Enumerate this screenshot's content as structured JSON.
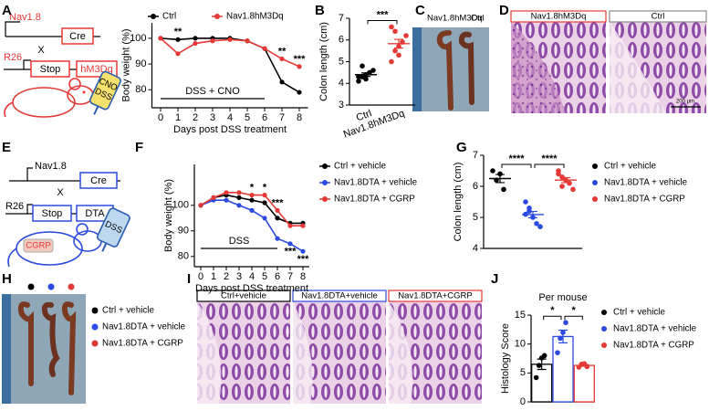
{
  "panels": [
    "A",
    "B",
    "C",
    "D",
    "E",
    "F",
    "G",
    "H",
    "I",
    "J"
  ],
  "schematic_a": {
    "gene": "Nav1.8",
    "driver": "Cre",
    "cross": "X",
    "locus": "R26",
    "stop": "Stop",
    "effector": "hM3Dq",
    "bottle": [
      "CNO",
      "DSS"
    ]
  },
  "schematic_e": {
    "gene": "Nav1.8",
    "driver": "Cre",
    "cross": "X",
    "locus": "R26",
    "stop": "Stop",
    "effector": "DTA",
    "injection": "CGRP",
    "bottle": "DSS"
  },
  "photo_c": {
    "labels": [
      "Nav1.8hM3Dq",
      "Ctrl"
    ]
  },
  "histology_d": {
    "panels": [
      {
        "label": "Nav1.8hM3Dq",
        "color": "#e53935"
      },
      {
        "label": "Ctrl",
        "color": "#888888"
      }
    ],
    "scale_bar": "200 μm"
  },
  "photo_h": {
    "legend": [
      {
        "name": "Ctrl + vehicle",
        "color": "#000000"
      },
      {
        "name": "Nav1.8DTA + vehicle",
        "color": "#2b4ae0"
      },
      {
        "name": "Nav1.8DTA + CGRP",
        "color": "#e53935"
      }
    ]
  },
  "histology_i": {
    "panels": [
      {
        "label": "Ctrl+vehicle",
        "color": "#000000"
      },
      {
        "label": "Nav1.8DTA+vehicle",
        "color": "#2b4ae0"
      },
      {
        "label": "Nav1.8DTA+CGRP",
        "color": "#e53935"
      }
    ]
  },
  "chart_data": [
    {
      "type": "line",
      "ylabel": "Body weight (%)",
      "xlabel": "Days post DSS treatment",
      "x": [
        0,
        1,
        2,
        3,
        4,
        5,
        6,
        7,
        8
      ],
      "xlim": [
        -0.5,
        8.5
      ],
      "xticks": [
        0,
        1,
        2,
        3,
        4,
        5,
        6,
        7,
        8
      ],
      "ylim": [
        73,
        106
      ],
      "yticks": [
        80,
        90,
        100
      ],
      "legend": "top",
      "series": [
        {
          "name": "Ctrl",
          "color": "#000000",
          "values": [
            100,
            99.5,
            100,
            100,
            100,
            99,
            96,
            83,
            79
          ]
        },
        {
          "name": "Nav1.8hM3Dq",
          "color": "#e53935",
          "values": [
            100,
            94,
            98,
            99,
            99.5,
            99,
            96,
            92,
            89
          ]
        }
      ],
      "annotations": [
        {
          "text": "**",
          "x": 1,
          "side": "above"
        },
        {
          "text": "**",
          "x": 7,
          "side": "above"
        },
        {
          "text": "***",
          "x": 8,
          "side": "above"
        }
      ],
      "period": {
        "label": "DSS + CNO",
        "x": [
          0,
          6
        ]
      }
    },
    {
      "type": "dot",
      "ylabel": "Colon length (cm)",
      "categories": [
        "Ctrl",
        "Nav1.8hM3Dq"
      ],
      "ylim": [
        3,
        7
      ],
      "yticks": [
        3,
        4,
        5,
        6,
        7
      ],
      "groups": [
        {
          "color": "#000000",
          "values": [
            4.1,
            4.3,
            4.4,
            4.5,
            4.6,
            4.3,
            4.8,
            4.2
          ],
          "mean": 4.4,
          "sem": 0.08
        },
        {
          "color": "#e53935",
          "values": [
            5.0,
            5.5,
            5.7,
            5.9,
            6.2,
            6.6,
            6.4,
            5.3
          ],
          "mean": 5.83,
          "sem": 0.2
        }
      ],
      "significance": [
        {
          "label": "***",
          "between": [
            0,
            1
          ]
        }
      ]
    },
    {
      "type": "line",
      "ylabel": "Body weight (%)",
      "xlabel": "Days post DSS treatment",
      "x": [
        0,
        1,
        2,
        3,
        4,
        5,
        6,
        7,
        8
      ],
      "xlim": [
        -0.5,
        8.5
      ],
      "xticks": [
        0,
        1,
        2,
        3,
        4,
        5,
        6,
        7,
        8
      ],
      "ylim": [
        76,
        116
      ],
      "yticks": [
        80,
        90,
        100
      ],
      "legend": "right",
      "series": [
        {
          "name": "Ctrl + vehicle",
          "color": "#000000",
          "values": [
            100,
            103,
            104,
            103,
            102,
            101,
            95,
            93,
            93
          ]
        },
        {
          "name": "Nav1.8DTA + vehicle",
          "color": "#2b4ae0",
          "values": [
            100,
            102,
            102,
            100,
            98,
            95,
            87,
            85,
            82
          ]
        },
        {
          "name": "Nav1.8DTA + CGRP",
          "color": "#e53935",
          "values": [
            100,
            103,
            105,
            105,
            104,
            104,
            98,
            92,
            92
          ]
        }
      ],
      "annotations": [
        {
          "text": "*",
          "x": 4,
          "side": "above"
        },
        {
          "text": "*",
          "x": 5,
          "side": "above"
        },
        {
          "text": "***",
          "x": 6,
          "side": "above"
        },
        {
          "text": "***",
          "x": 7,
          "side": "below"
        },
        {
          "text": "***",
          "x": 8,
          "side": "below"
        }
      ],
      "period": {
        "label": "DSS",
        "x": [
          0,
          6
        ]
      }
    },
    {
      "type": "dot",
      "ylabel": "Colon length (cm)",
      "ylim": [
        4,
        7
      ],
      "yticks": [
        4,
        5,
        6,
        7
      ],
      "legend": "right",
      "groups": [
        {
          "name": "Ctrl + vehicle",
          "color": "#000000",
          "values": [
            6.5,
            6.2,
            6.4,
            5.9
          ],
          "mean": 6.25,
          "sem": 0.13
        },
        {
          "name": "Nav1.8DTA + vehicle",
          "color": "#2b4ae0",
          "values": [
            5.5,
            5.3,
            5.0,
            4.8,
            4.7,
            5.1,
            5.2
          ],
          "mean": 5.09,
          "sem": 0.1
        },
        {
          "name": "Nav1.8DTA + CGRP",
          "color": "#e53935",
          "values": [
            6.5,
            6.3,
            6.2,
            6.1,
            5.9,
            6.4,
            6.0
          ],
          "mean": 6.2,
          "sem": 0.08
        }
      ],
      "significance": [
        {
          "label": "****",
          "between": [
            0,
            1
          ]
        },
        {
          "label": "****",
          "between": [
            1,
            2
          ]
        }
      ]
    },
    {
      "type": "bar",
      "title": "Per mouse",
      "ylabel": "Histology Score",
      "ylim": [
        0,
        15
      ],
      "yticks": [
        0,
        5,
        10,
        15
      ],
      "legend": "right",
      "groups": [
        {
          "name": "Ctrl + vehicle",
          "color": "#000000",
          "value": 6.5,
          "sem": 0.9,
          "points": [
            4.2,
            6.3,
            7.6,
            8.0
          ]
        },
        {
          "name": "Nav1.8DTA + vehicle",
          "color": "#2b4ae0",
          "value": 11.3,
          "sem": 1.1,
          "points": [
            8.5,
            11.0,
            12.0,
            13.7
          ]
        },
        {
          "name": "Nav1.8DTA + CGRP",
          "color": "#e53935",
          "value": 6.3,
          "sem": 0.15,
          "points": [
            6.0,
            6.5,
            6.6,
            6.1
          ]
        }
      ],
      "significance": [
        {
          "label": "*",
          "between": [
            0,
            1
          ]
        },
        {
          "label": "*",
          "between": [
            1,
            2
          ]
        }
      ]
    }
  ]
}
